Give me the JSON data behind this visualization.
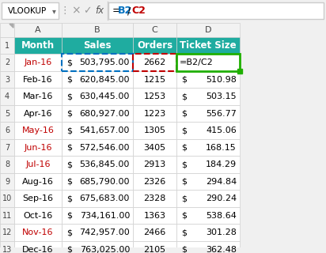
{
  "formula_bar_name": "VLOOKUP",
  "formula_b2_color": "#0070C0",
  "formula_c2_color": "#C00000",
  "header_bg": "#1FACA0",
  "col_labels": [
    "Month",
    "Sales",
    "Orders",
    "Ticket Size"
  ],
  "months": [
    "Jan-16",
    "Feb-16",
    "Mar-16",
    "Apr-16",
    "May-16",
    "Jun-16",
    "Jul-16",
    "Aug-16",
    "Sep-16",
    "Oct-16",
    "Nov-16",
    "Dec-16"
  ],
  "sales": [
    "503,795.00",
    "620,845.00",
    "630,445.00",
    "680,927.00",
    "541,657.00",
    "572,546.00",
    "536,845.00",
    "685,790.00",
    "675,683.00",
    "734,161.00",
    "742,957.00",
    "763,025.00"
  ],
  "orders": [
    "2662",
    "1215",
    "1253",
    "1223",
    "1305",
    "3405",
    "2913",
    "2326",
    "2328",
    "1363",
    "2466",
    "2105"
  ],
  "ticket_size": [
    "=B2/C2",
    "510.98",
    "503.15",
    "556.77",
    "415.06",
    "168.15",
    "184.29",
    "294.84",
    "290.24",
    "538.64",
    "301.28",
    "362.48"
  ],
  "special_orange_months": [
    "Jan-16",
    "May-16",
    "Jun-16",
    "Jul-16",
    "Nov-16"
  ],
  "grid_color": "#D0D0D0",
  "col_b_border_color": "#0070C0",
  "col_c_border_color": "#C00000",
  "col_d_border_color": "#1FAF00"
}
